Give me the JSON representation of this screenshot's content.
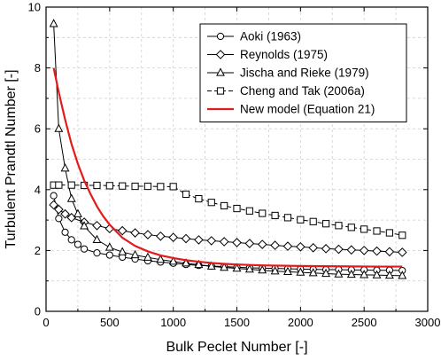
{
  "chart_data": {
    "type": "line",
    "xlabel": "Bulk Peclet Number [-]",
    "ylabel": "Turbulent Prandtl Number [-]",
    "xlim": [
      0,
      3000
    ],
    "ylim": [
      0,
      10
    ],
    "xticks": [
      0,
      500,
      1000,
      1500,
      2000,
      2500,
      3000
    ],
    "yticks": [
      0,
      2,
      4,
      6,
      8,
      10
    ],
    "xtick_labels": [
      "0",
      "500",
      "1000",
      "1500",
      "2000",
      "2500",
      "3000"
    ],
    "ytick_labels": [
      "0",
      "2",
      "4",
      "6",
      "8",
      "10"
    ],
    "grid": true,
    "legend_position": "top-right",
    "series": [
      {
        "name": "Aoki (1963)",
        "marker": "circle",
        "line_style": "solid",
        "color": "#000000",
        "x": [
          60,
          100,
          150,
          200,
          250,
          300,
          400,
          500,
          600,
          700,
          800,
          900,
          1000,
          1100,
          1200,
          1300,
          1400,
          1500,
          1600,
          1700,
          1800,
          1900,
          2000,
          2100,
          2200,
          2300,
          2400,
          2500,
          2600,
          2700,
          2800
        ],
        "y": [
          3.8,
          3.05,
          2.6,
          2.35,
          2.2,
          2.05,
          1.92,
          1.85,
          1.78,
          1.72,
          1.66,
          1.62,
          1.58,
          1.54,
          1.51,
          1.49,
          1.47,
          1.45,
          1.43,
          1.42,
          1.41,
          1.4,
          1.39,
          1.38,
          1.37,
          1.37,
          1.36,
          1.36,
          1.35,
          1.35,
          1.34
        ]
      },
      {
        "name": "Reynolds (1975)",
        "marker": "diamond",
        "line_style": "solid",
        "color": "#000000",
        "x": [
          60,
          100,
          150,
          200,
          300,
          400,
          500,
          600,
          700,
          800,
          900,
          1000,
          1100,
          1200,
          1300,
          1400,
          1500,
          1600,
          1700,
          1800,
          1900,
          2000,
          2100,
          2200,
          2300,
          2400,
          2500,
          2600,
          2700,
          2800
        ],
        "y": [
          3.5,
          3.35,
          3.2,
          3.08,
          2.93,
          2.82,
          2.72,
          2.65,
          2.58,
          2.52,
          2.47,
          2.43,
          2.39,
          2.35,
          2.32,
          2.29,
          2.26,
          2.23,
          2.2,
          2.17,
          2.14,
          2.12,
          2.09,
          2.06,
          2.04,
          2.02,
          2.0,
          1.98,
          1.96,
          1.94
        ]
      },
      {
        "name": "Jischa and Rieke (1979)",
        "marker": "triangle",
        "line_style": "solid",
        "color": "#000000",
        "x": [
          60,
          100,
          150,
          200,
          250,
          300,
          400,
          500,
          600,
          700,
          800,
          900,
          1000,
          1100,
          1200,
          1300,
          1400,
          1500,
          1600,
          1700,
          1800,
          1900,
          2000,
          2100,
          2200,
          2300,
          2400,
          2500,
          2600,
          2700,
          2800
        ],
        "y": [
          9.45,
          6.0,
          4.7,
          3.7,
          3.2,
          2.8,
          2.35,
          2.1,
          1.95,
          1.85,
          1.77,
          1.7,
          1.64,
          1.58,
          1.53,
          1.48,
          1.44,
          1.41,
          1.38,
          1.35,
          1.32,
          1.3,
          1.28,
          1.26,
          1.24,
          1.22,
          1.21,
          1.2,
          1.19,
          1.18,
          1.17
        ]
      },
      {
        "name": "Cheng and Tak (2006a)",
        "marker": "square",
        "line_style": "dashed",
        "color": "#000000",
        "x": [
          60,
          100,
          200,
          300,
          400,
          500,
          600,
          700,
          800,
          900,
          1000,
          1100,
          1200,
          1300,
          1400,
          1500,
          1600,
          1700,
          1800,
          1900,
          2000,
          2100,
          2200,
          2300,
          2400,
          2500,
          2600,
          2700,
          2800
        ],
        "y": [
          4.15,
          4.15,
          4.15,
          4.14,
          4.14,
          4.13,
          4.12,
          4.11,
          4.11,
          4.1,
          4.1,
          3.85,
          3.7,
          3.58,
          3.47,
          3.38,
          3.3,
          3.22,
          3.15,
          3.08,
          3.01,
          2.95,
          2.88,
          2.82,
          2.76,
          2.7,
          2.64,
          2.58,
          2.5
        ]
      },
      {
        "name": "New model (Equation 21)",
        "marker": "none",
        "line_style": "solid",
        "color": "#e31a1c",
        "x": [
          60,
          100,
          150,
          200,
          250,
          300,
          350,
          400,
          450,
          500,
          600,
          700,
          800,
          900,
          1000,
          1100,
          1200,
          1300,
          1400,
          1500,
          1700,
          2000,
          2300,
          2600,
          2800
        ],
        "y": [
          8.0,
          7.2,
          6.3,
          5.5,
          4.85,
          4.3,
          3.85,
          3.45,
          3.12,
          2.85,
          2.42,
          2.15,
          1.97,
          1.84,
          1.75,
          1.68,
          1.63,
          1.59,
          1.56,
          1.54,
          1.51,
          1.49,
          1.48,
          1.47,
          1.47
        ]
      }
    ]
  }
}
